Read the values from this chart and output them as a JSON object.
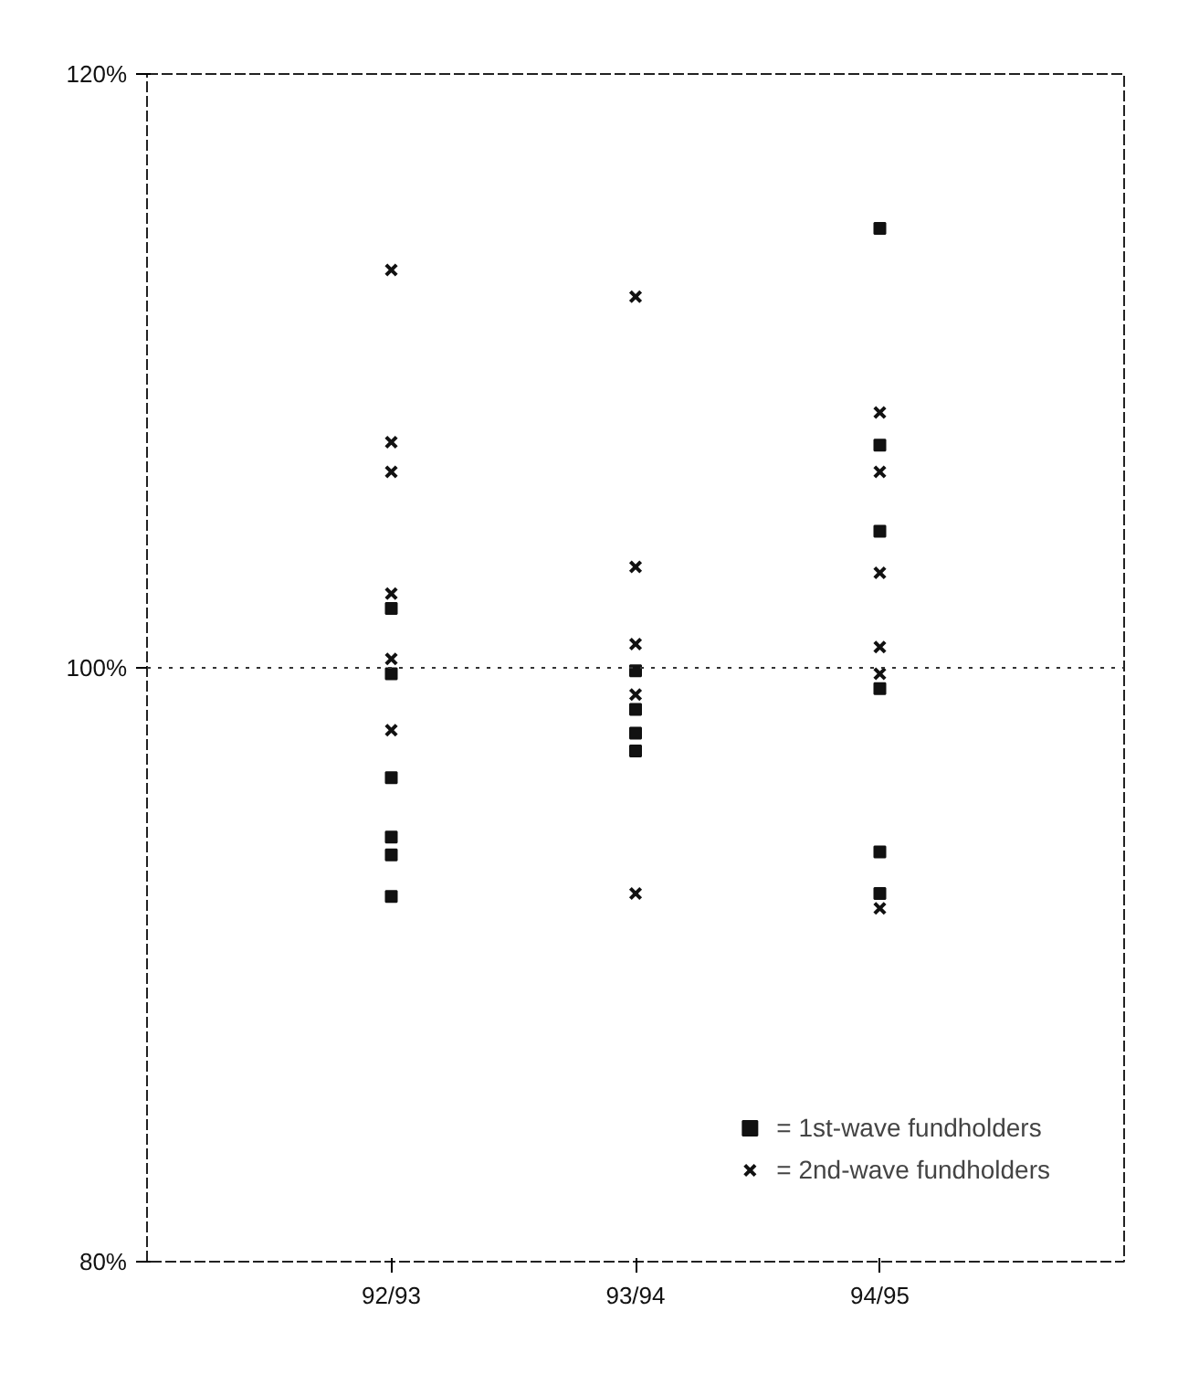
{
  "chart_data": {
    "type": "scatter",
    "categories": [
      "92/93",
      "93/94",
      "94/95"
    ],
    "ylim": [
      80,
      120
    ],
    "yticks": [
      {
        "value": 80,
        "label": "80%"
      },
      {
        "value": 100,
        "label": "100%"
      },
      {
        "value": 120,
        "label": "120%"
      }
    ],
    "series": [
      {
        "name": "= 1st-wave fundholders",
        "color": "#111111",
        "marker": "square",
        "x": [
          "92/93",
          "92/93",
          "92/93",
          "92/93",
          "92/93",
          "92/93",
          "93/94",
          "93/94",
          "93/94",
          "93/94",
          "94/95",
          "94/95",
          "94/95",
          "94/95",
          "94/95",
          "94/95"
        ],
        "values": [
          102.0,
          99.8,
          96.3,
          94.3,
          93.7,
          92.3,
          99.9,
          98.6,
          97.8,
          97.2,
          114.8,
          107.5,
          104.6,
          99.3,
          93.8,
          92.4
        ]
      },
      {
        "name": "= 2nd-wave fundholders",
        "color": "#111111",
        "marker": "x",
        "x": [
          "92/93",
          "92/93",
          "92/93",
          "92/93",
          "92/93",
          "92/93",
          "93/94",
          "93/94",
          "93/94",
          "93/94",
          "93/94",
          "94/95",
          "94/95",
          "94/95",
          "94/95",
          "94/95",
          "94/95"
        ],
        "values": [
          113.4,
          107.6,
          106.6,
          102.5,
          100.3,
          97.9,
          112.5,
          103.4,
          100.8,
          99.1,
          92.4,
          108.6,
          106.6,
          103.2,
          100.7,
          99.8,
          91.9
        ]
      }
    ],
    "ref_lines": [
      {
        "axis": "y",
        "value": 100,
        "line_style": "dotted"
      }
    ],
    "grid": false,
    "legend": "bottom right"
  }
}
